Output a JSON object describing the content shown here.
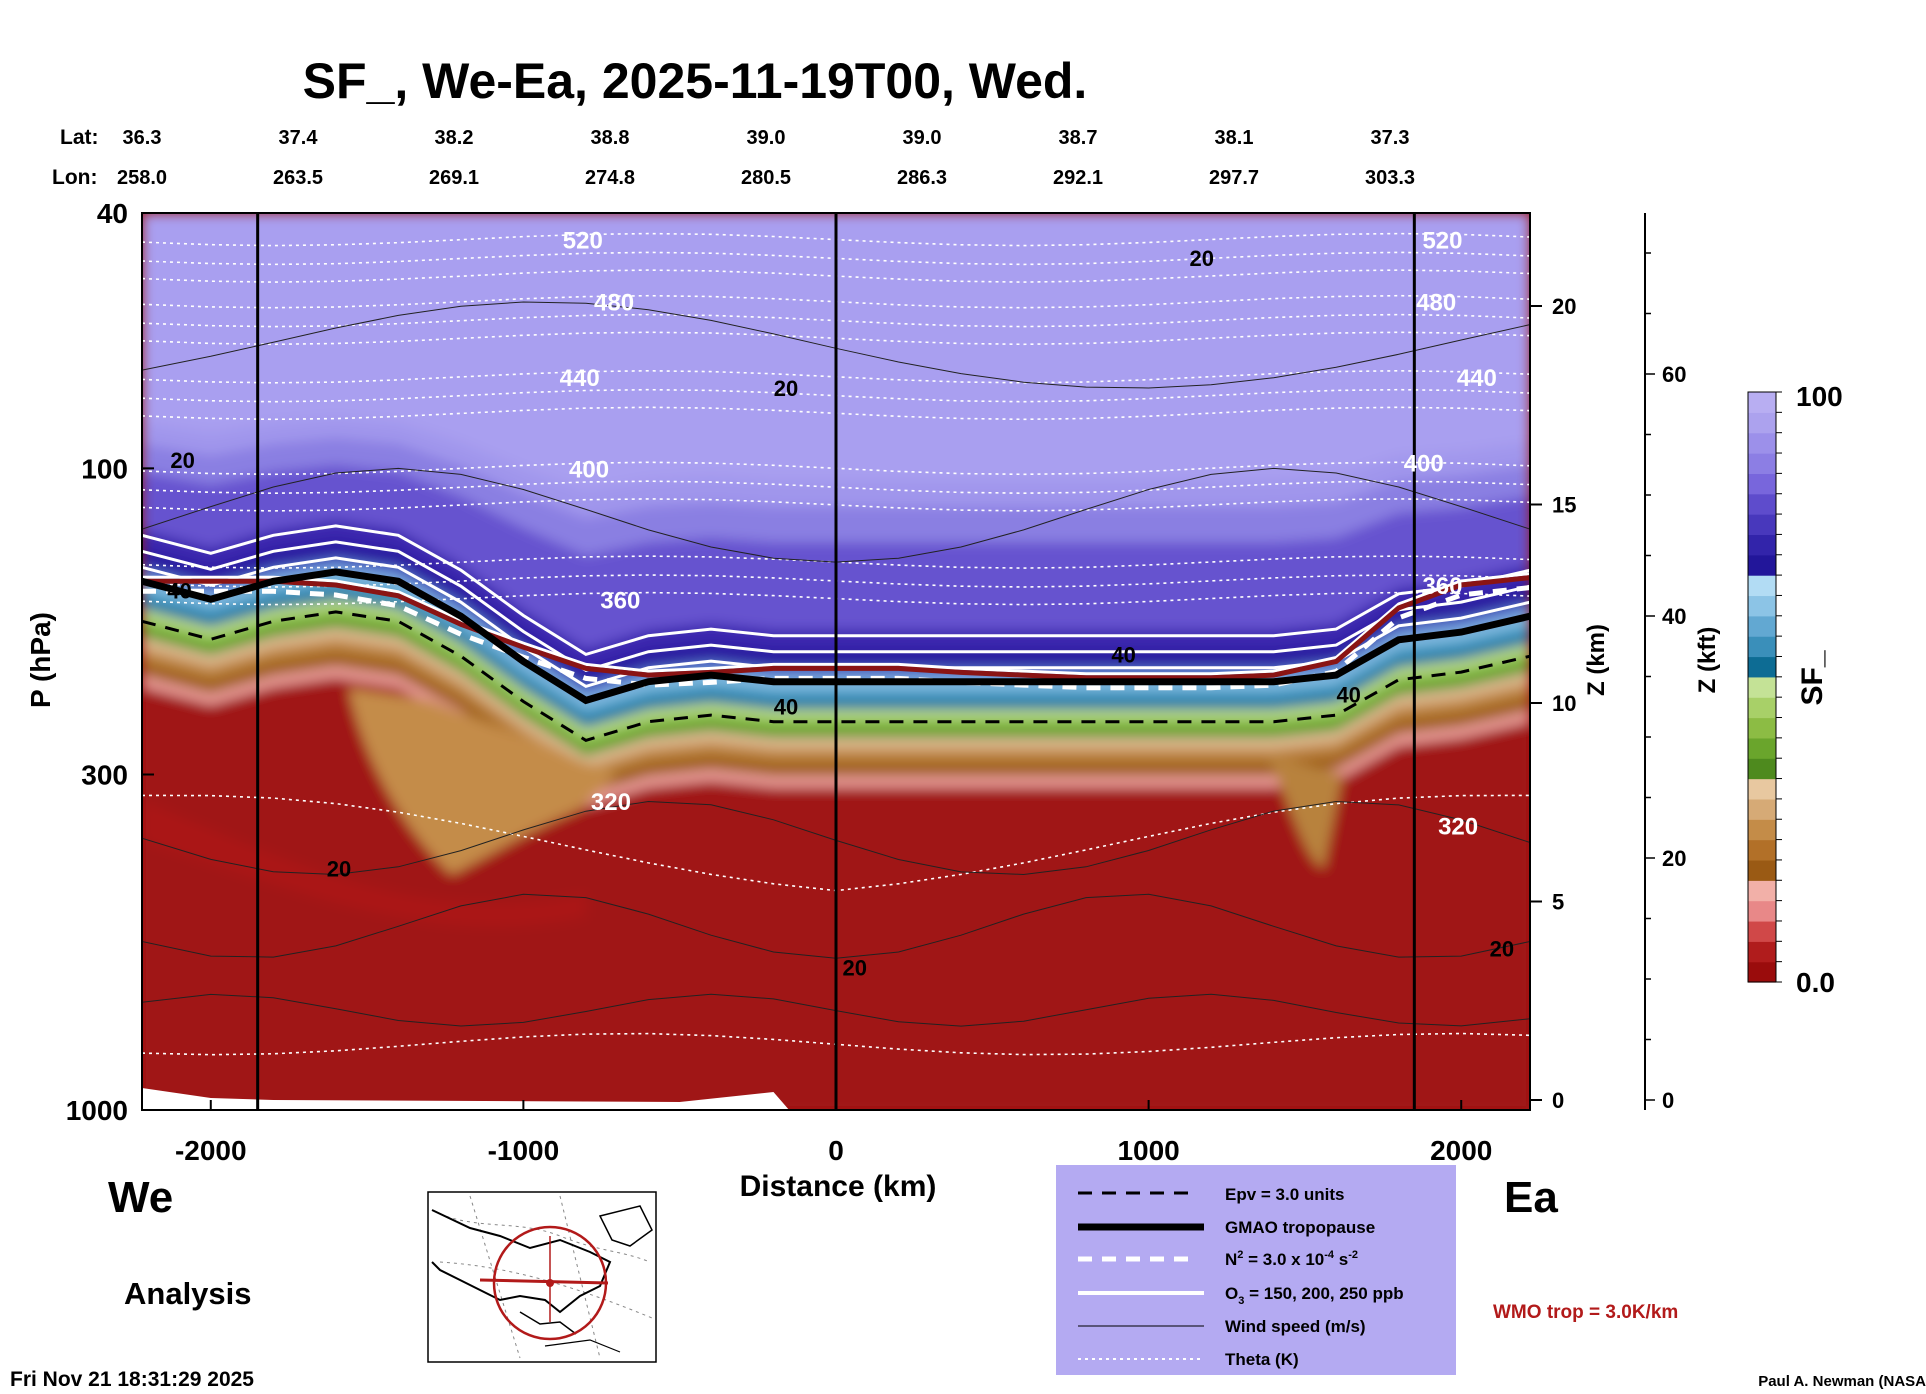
{
  "title": "SF_, We-Ea, 2025-11-19T00, Wed.",
  "lat_label": "Lat:",
  "lon_label": "Lon:",
  "lats": [
    "36.3",
    "37.4",
    "38.2",
    "38.8",
    "39.0",
    "39.0",
    "38.7",
    "38.1",
    "37.3"
  ],
  "lons": [
    "258.0",
    "263.5",
    "269.1",
    "274.8",
    "280.5",
    "286.3",
    "292.1",
    "297.7",
    "303.3"
  ],
  "left_label": "We",
  "right_label": "Ea",
  "analysis_label": "Analysis",
  "timestamp": "Fri Nov 21 18:31:29 2025",
  "credit": "Paul A. Newman (NASA",
  "wmo_note": "WMO trop = 3.0K/km",
  "colorbar": {
    "label": "SF_",
    "max_label": "100",
    "min_label": "0.0"
  },
  "legend": {
    "epv": "Epv = 3.0 units",
    "tropopause": "GMAO tropopause",
    "n2_prefix": "N",
    "n2_sup": "2",
    "n2_mid": " = 3.0 x 10",
    "n2_exp": "-4",
    "n2_unit": " s",
    "n2_unit_exp": "-2",
    "o3_prefix": "O",
    "o3_sub": "3",
    "o3_rest": " = 150, 200, 250 ppb",
    "wind": "Wind speed (m/s)",
    "theta": "Theta (K)"
  },
  "chart_data": {
    "type": "heatmap",
    "title": "SF_, We-Ea, 2025-11-19T00, Wed.",
    "xlabel": "Distance (km)",
    "ylabel": "P (hPa)",
    "y2label": "Z (km)",
    "y3label": "Z (kft)",
    "xlim": [
      -2220,
      2220
    ],
    "ylim_hPa": [
      1000,
      40
    ],
    "x_ticks": [
      -2000,
      -1000,
      0,
      1000,
      2000
    ],
    "x_tick_labels": [
      "-2000",
      "-1000",
      "0",
      "1000",
      "2000"
    ],
    "p_ticks": [
      40,
      100,
      300,
      1000
    ],
    "p_tick_labels": [
      "40",
      "100",
      "300",
      "1000"
    ],
    "z_km_ticks": [
      0,
      5,
      10,
      15,
      20
    ],
    "z_km_tick_labels": [
      "0",
      "5",
      "10",
      "15",
      "20"
    ],
    "z_kft_ticks": [
      0,
      20,
      40,
      60
    ],
    "z_kft_tick_labels": [
      "0",
      "20",
      "40",
      "60"
    ],
    "colorbar_range": [
      0,
      100
    ],
    "colorbar_colors": [
      "#9a0c0c",
      "#b01c1c",
      "#d04848",
      "#e88888",
      "#f2b0a8",
      "#9a5a14",
      "#b27028",
      "#c48c48",
      "#d6aa76",
      "#e8c8a0",
      "#4e8a1e",
      "#6aa52c",
      "#8cbc44",
      "#a8d068",
      "#c4e296",
      "#0d6c94",
      "#3a8fba",
      "#62a8d2",
      "#8cc4e6",
      "#b2dcf4",
      "#22169a",
      "#3224aa",
      "#4838bc",
      "#5e4ccc",
      "#7866dc",
      "#8c7ee4",
      "#9c90ea",
      "#aca2ee",
      "#b8aef2"
    ],
    "vertical_lines_km": [
      -1850,
      0,
      1850
    ],
    "theta_labels": [
      {
        "text": "520",
        "x": -810,
        "p": 44
      },
      {
        "text": "480",
        "x": -710,
        "p": 55
      },
      {
        "text": "440",
        "x": -820,
        "p": 72
      },
      {
        "text": "400",
        "x": -790,
        "p": 100
      },
      {
        "text": "360",
        "x": -690,
        "p": 160
      },
      {
        "text": "320",
        "x": -720,
        "p": 330
      },
      {
        "text": "520",
        "x": 1940,
        "p": 44
      },
      {
        "text": "480",
        "x": 1920,
        "p": 55
      },
      {
        "text": "440",
        "x": 2050,
        "p": 72
      },
      {
        "text": "400",
        "x": 1880,
        "p": 98
      },
      {
        "text": "360",
        "x": 1940,
        "p": 152
      },
      {
        "text": "320",
        "x": 1990,
        "p": 360
      }
    ],
    "wind_labels": [
      {
        "text": "20",
        "x": 1170,
        "p": 47
      },
      {
        "text": "20",
        "x": -160,
        "p": 75
      },
      {
        "text": "20",
        "x": -2090,
        "p": 97
      },
      {
        "text": "40",
        "x": -2100,
        "p": 155
      },
      {
        "text": "40",
        "x": 920,
        "p": 195
      },
      {
        "text": "40",
        "x": -160,
        "p": 235
      },
      {
        "text": "40",
        "x": 1640,
        "p": 225
      },
      {
        "text": "20",
        "x": -1590,
        "p": 420
      },
      {
        "text": "20",
        "x": 60,
        "p": 600
      },
      {
        "text": "20",
        "x": 2130,
        "p": 560
      }
    ],
    "wind_speed_contours_ms": [
      20,
      40
    ],
    "theta_contours_K": [
      320,
      360,
      400,
      440,
      480,
      520
    ],
    "x_profile_km": [
      -2220,
      -2000,
      -1800,
      -1600,
      -1400,
      -1200,
      -1000,
      -800,
      -600,
      -400,
      -200,
      0,
      200,
      400,
      600,
      800,
      1000,
      1200,
      1400,
      1600,
      1800,
      2000,
      2220
    ],
    "tropopause_hPa": [
      150,
      160,
      150,
      145,
      150,
      170,
      200,
      230,
      215,
      210,
      215,
      215,
      215,
      215,
      215,
      215,
      215,
      215,
      215,
      210,
      185,
      180,
      170
    ],
    "wmo_trop_hPa": [
      150,
      150,
      150,
      152,
      158,
      175,
      190,
      205,
      210,
      208,
      205,
      205,
      205,
      208,
      210,
      212,
      212,
      212,
      210,
      200,
      165,
      152,
      148
    ]
  }
}
